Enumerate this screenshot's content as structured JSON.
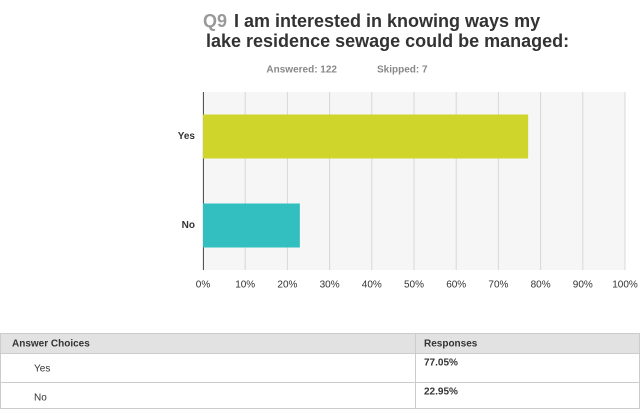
{
  "chart_data": {
    "type": "bar",
    "orientation": "horizontal",
    "question_number": "Q9",
    "title": "I am interested in knowing ways my lake residence sewage could be managed:",
    "answered": "Answered: 122",
    "skipped": "Skipped: 7",
    "categories": [
      "Yes",
      "No"
    ],
    "values": [
      77.05,
      22.95
    ],
    "value_labels": [
      "77.05%",
      "22.95%"
    ],
    "colors": [
      "#d0d52b",
      "#33bec0"
    ],
    "xlim": [
      0,
      100
    ],
    "xticks": [
      {
        "value": 0,
        "label": "0%"
      },
      {
        "value": 10,
        "label": "10%"
      },
      {
        "value": 20,
        "label": "20%"
      },
      {
        "value": 30,
        "label": "30%"
      },
      {
        "value": 40,
        "label": "40%"
      },
      {
        "value": 50,
        "label": "50%"
      },
      {
        "value": 60,
        "label": "60%"
      },
      {
        "value": 70,
        "label": "70%"
      },
      {
        "value": 80,
        "label": "80%"
      },
      {
        "value": 90,
        "label": "90%"
      },
      {
        "value": 100,
        "label": "100%"
      }
    ],
    "grid": true,
    "table_headers": [
      "Answer Choices",
      "Responses"
    ]
  }
}
